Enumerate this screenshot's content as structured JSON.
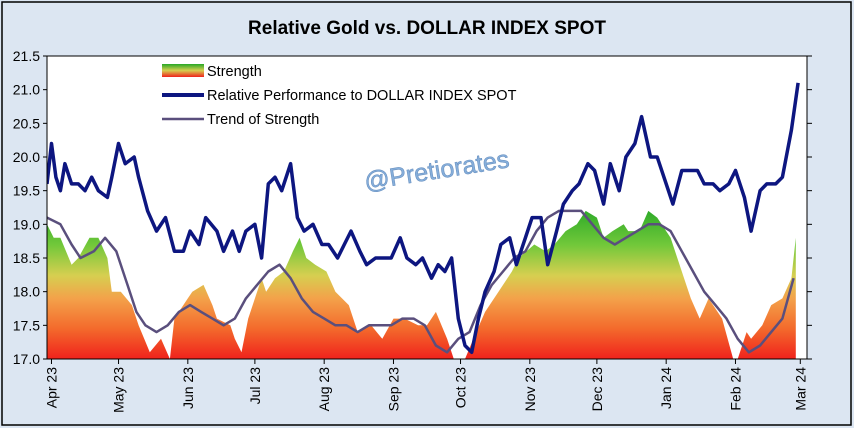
{
  "chart_data": {
    "type": "area",
    "title": "Relative Gold vs. DOLLAR INDEX SPOT",
    "ylim": [
      17.0,
      21.5
    ],
    "y_ticks": [
      "17.0",
      "17.5",
      "18.0",
      "18.5",
      "19.0",
      "19.5",
      "20.0",
      "20.5",
      "21.0",
      "21.5"
    ],
    "x_ticks": [
      {
        "label": "Apr 23",
        "x": "2023-04-01"
      },
      {
        "label": "May 23",
        "x": "2023-05-01"
      },
      {
        "label": "Jun 23",
        "x": "2023-06-01"
      },
      {
        "label": "Jul 23",
        "x": "2023-07-01"
      },
      {
        "label": "Aug 23",
        "x": "2023-08-01"
      },
      {
        "label": "Sep 23",
        "x": "2023-09-01"
      },
      {
        "label": "Oct 23",
        "x": "2023-10-01"
      },
      {
        "label": "Nov 23",
        "x": "2023-11-01"
      },
      {
        "label": "Dec 23",
        "x": "2023-12-01"
      },
      {
        "label": "Jan 24",
        "x": "2024-01-01"
      },
      {
        "label": "Feb 24",
        "x": "2024-02-01"
      },
      {
        "label": "Mar 24",
        "x": "2024-03-01"
      }
    ],
    "x_range": [
      "2023-03-30",
      "2024-03-04"
    ],
    "legend_position": "top-left",
    "watermark": "@Pretiorates",
    "series": [
      {
        "name": "Strength",
        "style": "gradient-area",
        "x": [
          "2023-03-30",
          "2023-04-02",
          "2023-04-05",
          "2023-04-10",
          "2023-04-13",
          "2023-04-18",
          "2023-04-22",
          "2023-04-26",
          "2023-04-28",
          "2023-05-02",
          "2023-05-07",
          "2023-05-10",
          "2023-05-15",
          "2023-05-20",
          "2023-05-24",
          "2023-05-26",
          "2023-06-01",
          "2023-06-03",
          "2023-06-08",
          "2023-06-12",
          "2023-06-14",
          "2023-06-20",
          "2023-06-22",
          "2023-06-25",
          "2023-06-28",
          "2023-07-04",
          "2023-07-06",
          "2023-07-10",
          "2023-07-14",
          "2023-07-18",
          "2023-07-21",
          "2023-07-24",
          "2023-07-28",
          "2023-08-02",
          "2023-08-06",
          "2023-08-12",
          "2023-08-16",
          "2023-08-22",
          "2023-08-27",
          "2023-09-01",
          "2023-09-06",
          "2023-09-12",
          "2023-09-16",
          "2023-09-20",
          "2023-09-25",
          "2023-09-28",
          "2023-10-03",
          "2023-10-08",
          "2023-10-12",
          "2023-10-18",
          "2023-10-24",
          "2023-10-27",
          "2023-11-03",
          "2023-11-08",
          "2023-11-12",
          "2023-11-17",
          "2023-11-22",
          "2023-11-26",
          "2023-12-01",
          "2023-12-04",
          "2023-12-08",
          "2023-12-13",
          "2023-12-15",
          "2023-12-20",
          "2023-12-24",
          "2023-12-28",
          "2024-01-03",
          "2024-01-08",
          "2024-01-12",
          "2024-01-16",
          "2024-01-20",
          "2024-01-26",
          "2024-01-31",
          "2024-02-02",
          "2024-02-06",
          "2024-02-08",
          "2024-02-13",
          "2024-02-17",
          "2024-02-22",
          "2024-02-26",
          "2024-02-28"
        ],
        "values": [
          19.0,
          18.8,
          18.8,
          18.4,
          18.5,
          18.8,
          18.8,
          18.5,
          18.0,
          18.0,
          17.8,
          17.5,
          17.1,
          17.3,
          17.0,
          17.6,
          17.9,
          18.0,
          18.1,
          17.8,
          17.6,
          17.5,
          17.3,
          17.1,
          17.6,
          18.2,
          18.0,
          18.2,
          18.3,
          18.6,
          18.8,
          18.5,
          18.4,
          18.3,
          18.0,
          17.8,
          17.4,
          17.5,
          17.3,
          17.6,
          17.6,
          17.5,
          17.5,
          17.7,
          17.3,
          17.0,
          17.0,
          17.4,
          17.7,
          18.0,
          18.3,
          18.5,
          18.7,
          18.6,
          18.7,
          18.9,
          19.0,
          19.2,
          19.1,
          18.8,
          18.9,
          19.0,
          18.9,
          18.9,
          19.2,
          19.1,
          18.8,
          18.3,
          17.9,
          17.6,
          17.9,
          17.6,
          17.0,
          17.0,
          17.4,
          17.3,
          17.5,
          17.8,
          17.9,
          18.2,
          18.8
        ]
      },
      {
        "name": "Relative Performance to DOLLAR INDEX SPOT",
        "style": "line",
        "color": "#0d1680",
        "x": [
          "2023-03-30",
          "2023-04-01",
          "2023-04-03",
          "2023-04-05",
          "2023-04-07",
          "2023-04-10",
          "2023-04-13",
          "2023-04-16",
          "2023-04-19",
          "2023-04-22",
          "2023-04-26",
          "2023-04-28",
          "2023-05-01",
          "2023-05-04",
          "2023-05-06",
          "2023-05-08",
          "2023-05-10",
          "2023-05-14",
          "2023-05-18",
          "2023-05-22",
          "2023-05-26",
          "2023-05-30",
          "2023-06-02",
          "2023-06-06",
          "2023-06-09",
          "2023-06-14",
          "2023-06-17",
          "2023-06-21",
          "2023-06-24",
          "2023-06-27",
          "2023-07-01",
          "2023-07-04",
          "2023-07-07",
          "2023-07-10",
          "2023-07-13",
          "2023-07-17",
          "2023-07-20",
          "2023-07-23",
          "2023-07-27",
          "2023-07-31",
          "2023-08-03",
          "2023-08-07",
          "2023-08-10",
          "2023-08-13",
          "2023-08-17",
          "2023-08-20",
          "2023-08-24",
          "2023-08-28",
          "2023-08-31",
          "2023-09-04",
          "2023-09-07",
          "2023-09-11",
          "2023-09-14",
          "2023-09-18",
          "2023-09-21",
          "2023-09-24",
          "2023-09-27",
          "2023-09-30",
          "2023-10-03",
          "2023-10-06",
          "2023-10-09",
          "2023-10-12",
          "2023-10-16",
          "2023-10-19",
          "2023-10-23",
          "2023-10-26",
          "2023-10-30",
          "2023-11-02",
          "2023-11-06",
          "2023-11-09",
          "2023-11-13",
          "2023-11-16",
          "2023-11-20",
          "2023-11-23",
          "2023-11-27",
          "2023-11-30",
          "2023-12-04",
          "2023-12-07",
          "2023-12-11",
          "2023-12-14",
          "2023-12-18",
          "2023-12-21",
          "2023-12-25",
          "2023-12-28",
          "2024-01-01",
          "2024-01-04",
          "2024-01-08",
          "2024-01-11",
          "2024-01-15",
          "2024-01-18",
          "2024-01-22",
          "2024-01-25",
          "2024-01-29",
          "2024-02-01",
          "2024-02-05",
          "2024-02-08",
          "2024-02-12",
          "2024-02-15",
          "2024-02-19",
          "2024-02-22",
          "2024-02-26",
          "2024-02-29"
        ],
        "values": [
          19.6,
          20.2,
          19.7,
          19.5,
          19.9,
          19.6,
          19.6,
          19.5,
          19.7,
          19.5,
          19.4,
          19.7,
          20.2,
          19.9,
          19.95,
          20.0,
          19.7,
          19.2,
          18.9,
          19.1,
          18.6,
          18.6,
          18.9,
          18.7,
          19.1,
          18.9,
          18.6,
          18.9,
          18.6,
          18.9,
          19.0,
          18.5,
          19.6,
          19.7,
          19.5,
          19.9,
          19.1,
          18.9,
          19.0,
          18.7,
          18.7,
          18.5,
          18.7,
          18.9,
          18.6,
          18.4,
          18.5,
          18.5,
          18.5,
          18.8,
          18.5,
          18.4,
          18.5,
          18.2,
          18.4,
          18.3,
          18.5,
          17.6,
          17.2,
          17.1,
          17.6,
          18.0,
          18.3,
          18.7,
          18.8,
          18.4,
          18.8,
          19.1,
          19.1,
          18.4,
          18.9,
          19.3,
          19.5,
          19.6,
          19.9,
          19.8,
          19.3,
          19.9,
          19.5,
          20.0,
          20.2,
          20.6,
          20.0,
          20.0,
          19.6,
          19.3,
          19.8,
          19.8,
          19.8,
          19.6,
          19.6,
          19.5,
          19.6,
          19.8,
          19.4,
          18.9,
          19.5,
          19.6,
          19.6,
          19.7,
          20.4,
          21.1
        ]
      },
      {
        "name": "Trend of Strength",
        "style": "line",
        "color": "#5a4f7d",
        "x": [
          "2023-03-30",
          "2023-04-05",
          "2023-04-10",
          "2023-04-14",
          "2023-04-20",
          "2023-04-25",
          "2023-04-30",
          "2023-05-05",
          "2023-05-09",
          "2023-05-13",
          "2023-05-18",
          "2023-05-23",
          "2023-05-28",
          "2023-06-02",
          "2023-06-07",
          "2023-06-12",
          "2023-06-17",
          "2023-06-22",
          "2023-06-27",
          "2023-07-02",
          "2023-07-07",
          "2023-07-12",
          "2023-07-17",
          "2023-07-22",
          "2023-07-27",
          "2023-08-01",
          "2023-08-06",
          "2023-08-11",
          "2023-08-16",
          "2023-08-21",
          "2023-08-26",
          "2023-08-31",
          "2023-09-05",
          "2023-09-10",
          "2023-09-15",
          "2023-09-20",
          "2023-09-25",
          "2023-09-30",
          "2023-10-05",
          "2023-10-10",
          "2023-10-15",
          "2023-10-20",
          "2023-10-25",
          "2023-10-30",
          "2023-11-04",
          "2023-11-09",
          "2023-11-14",
          "2023-11-19",
          "2023-11-24",
          "2023-11-29",
          "2023-12-04",
          "2023-12-09",
          "2023-12-14",
          "2023-12-19",
          "2023-12-24",
          "2023-12-29",
          "2024-01-03",
          "2024-01-08",
          "2024-01-13",
          "2024-01-18",
          "2024-01-23",
          "2024-01-28",
          "2024-02-02",
          "2024-02-07",
          "2024-02-12",
          "2024-02-17",
          "2024-02-22",
          "2024-02-27"
        ],
        "values": [
          19.1,
          19.0,
          18.7,
          18.5,
          18.6,
          18.8,
          18.6,
          18.1,
          17.7,
          17.5,
          17.4,
          17.5,
          17.7,
          17.8,
          17.7,
          17.6,
          17.5,
          17.6,
          17.9,
          18.1,
          18.3,
          18.4,
          18.2,
          17.9,
          17.7,
          17.6,
          17.5,
          17.5,
          17.4,
          17.5,
          17.5,
          17.5,
          17.6,
          17.6,
          17.5,
          17.2,
          17.1,
          17.3,
          17.4,
          17.8,
          18.1,
          18.3,
          18.5,
          18.6,
          18.9,
          19.1,
          19.2,
          19.2,
          19.2,
          19.0,
          18.8,
          18.7,
          18.8,
          18.9,
          19.0,
          19.0,
          18.9,
          18.6,
          18.3,
          18.0,
          17.8,
          17.6,
          17.3,
          17.1,
          17.2,
          17.4,
          17.6,
          18.2
        ]
      }
    ]
  }
}
